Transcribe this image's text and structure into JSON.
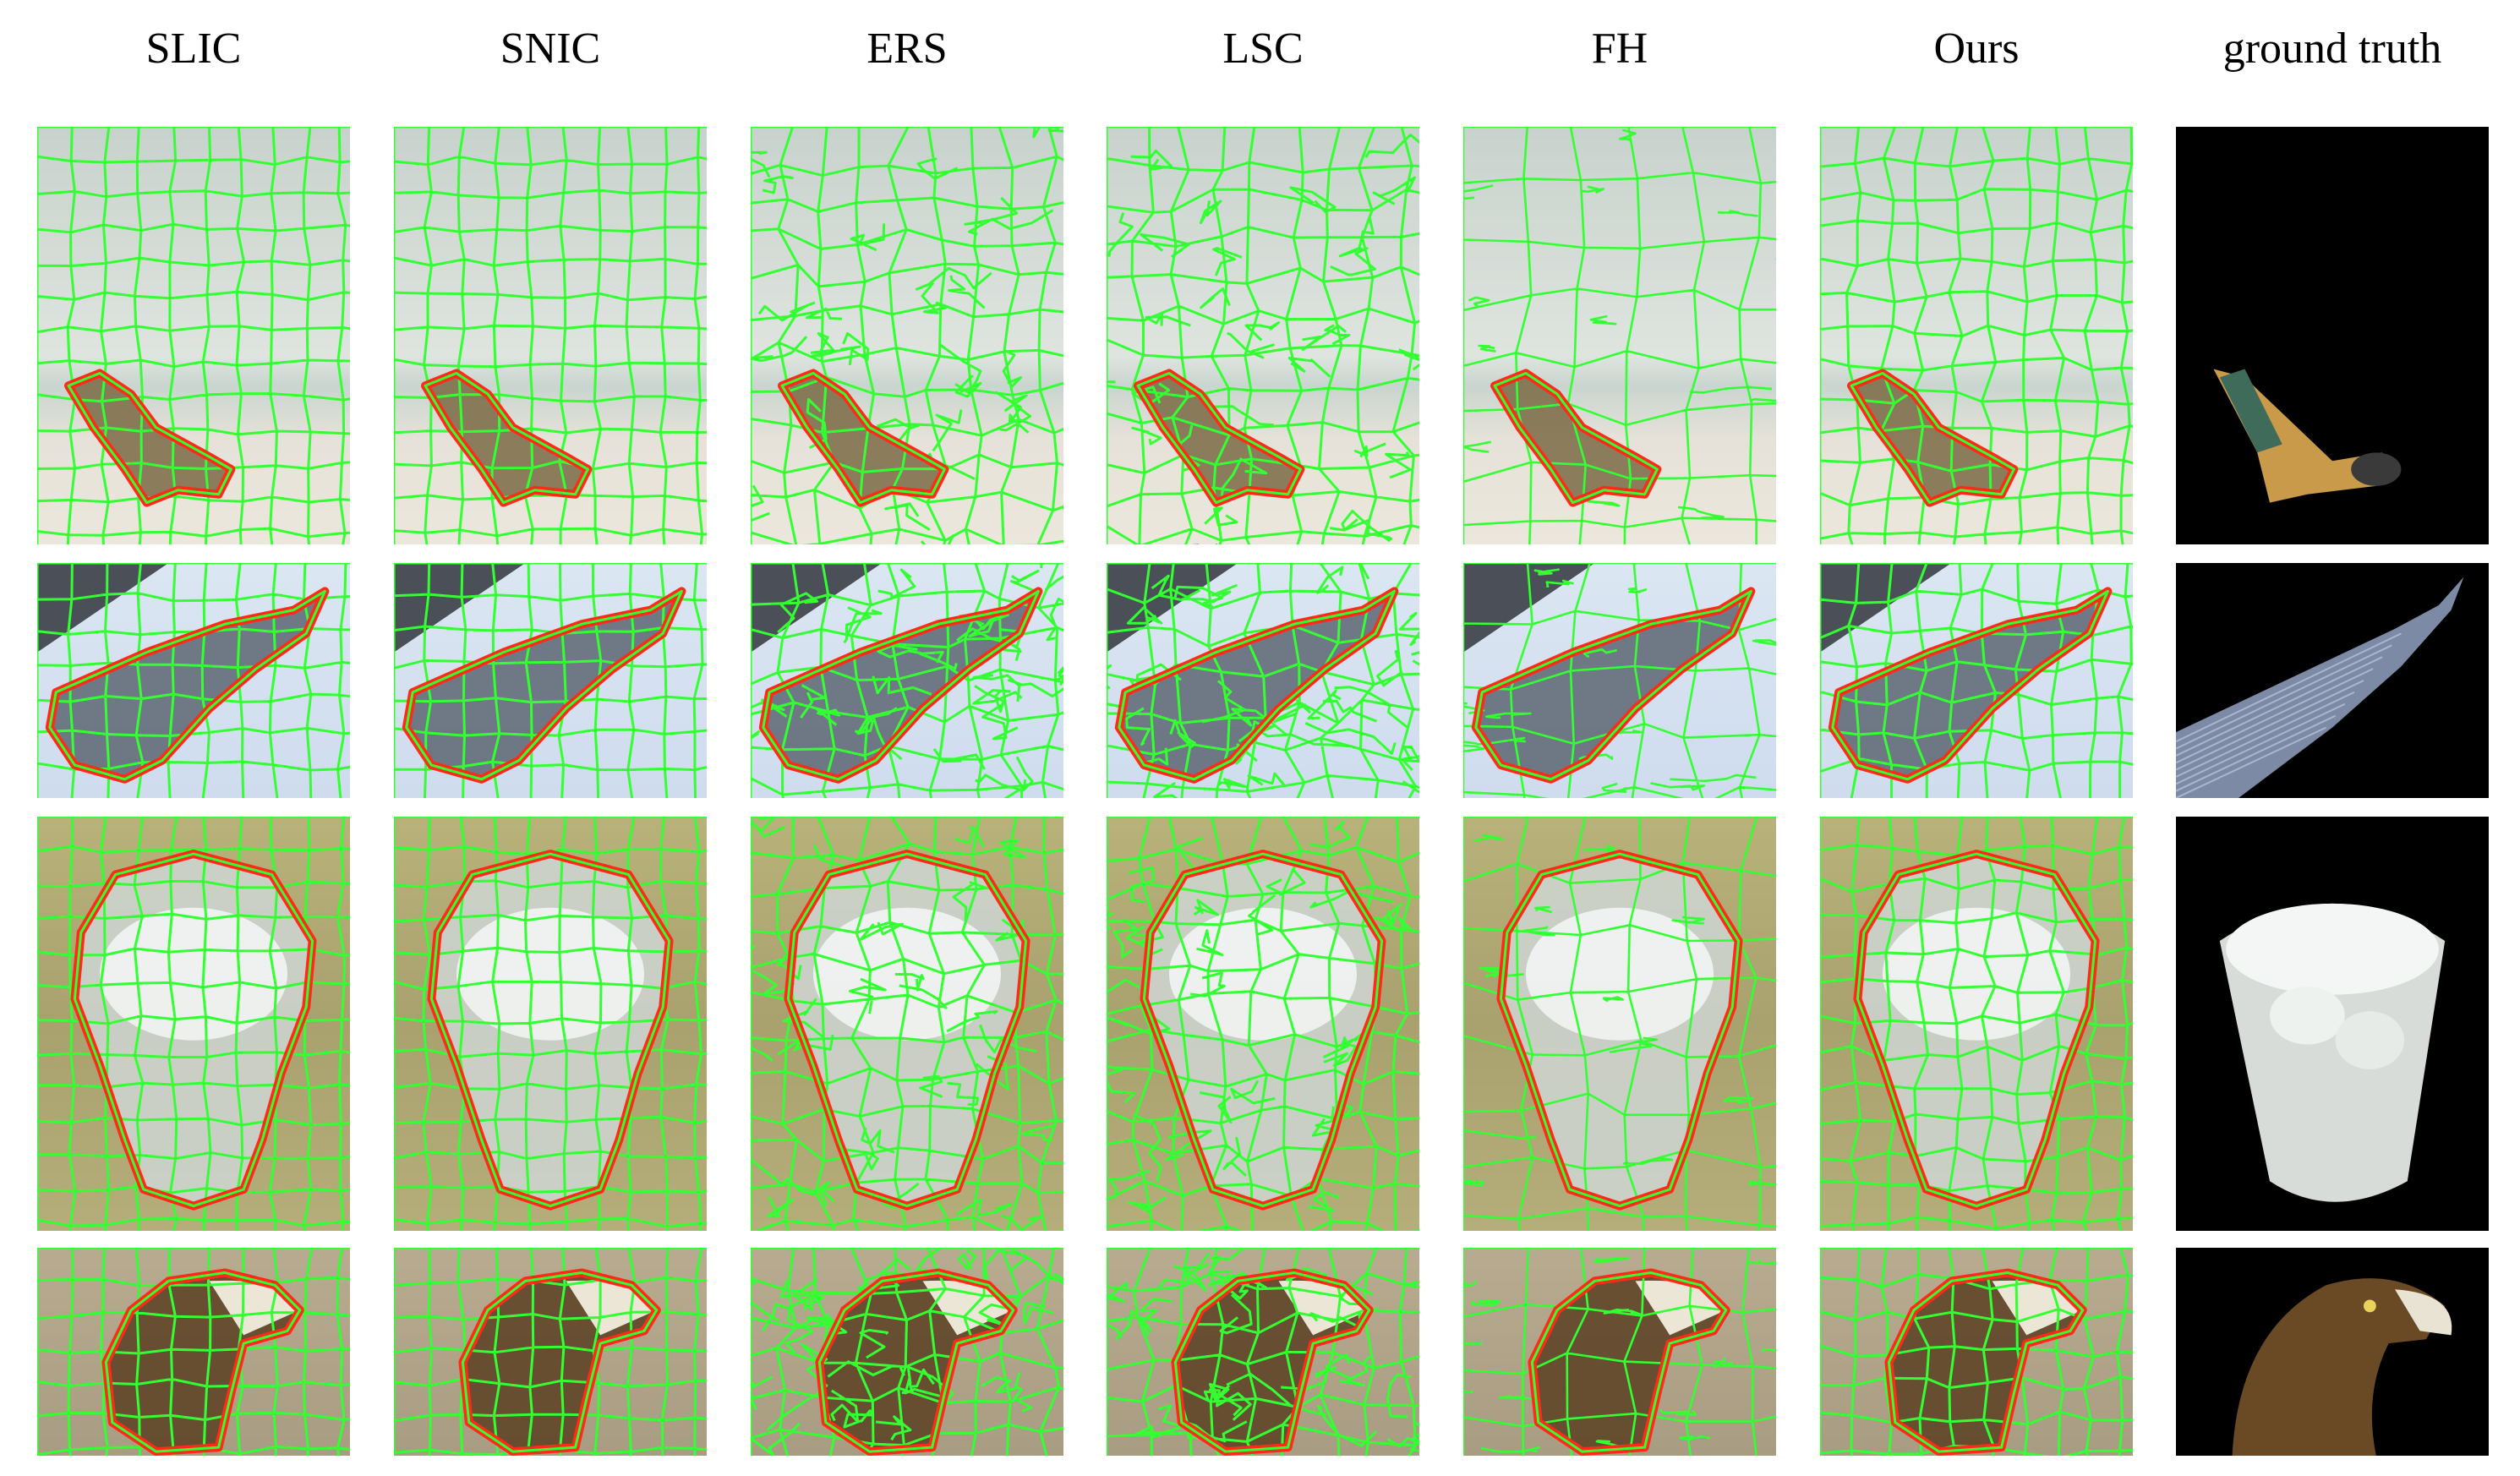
{
  "columns": [
    {
      "id": "slic",
      "label": "SLIC"
    },
    {
      "id": "snic",
      "label": "SNIC"
    },
    {
      "id": "ers",
      "label": "ERS"
    },
    {
      "id": "lsc",
      "label": "LSC"
    },
    {
      "id": "fh",
      "label": "FH"
    },
    {
      "id": "ours",
      "label": "Ours"
    },
    {
      "id": "gt",
      "label": "ground truth"
    }
  ],
  "rows": [
    {
      "id": "beach-chair",
      "subject": "deck chair on beach"
    },
    {
      "id": "skyscraper",
      "subject": "tilted skyscraper"
    },
    {
      "id": "glass",
      "subject": "glass of water on grass"
    },
    {
      "id": "eagle",
      "subject": "eagle head"
    }
  ],
  "colors": {
    "boundary": "#33ff33",
    "object_contour": "#ff2a1a",
    "gt_background": "#000000",
    "page_background": "#ffffff"
  }
}
